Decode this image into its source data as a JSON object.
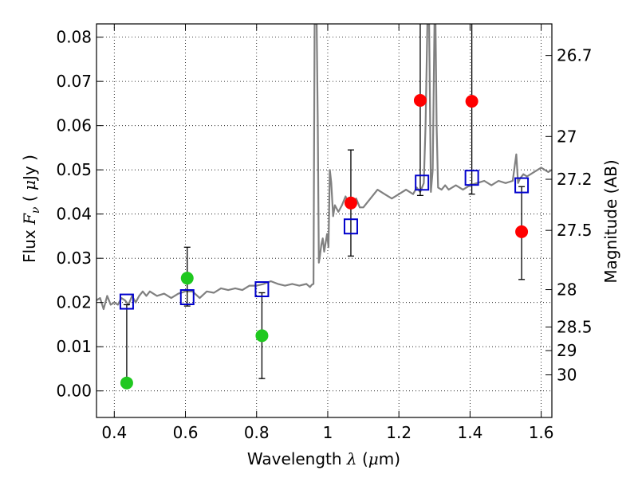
{
  "chart_data": {
    "type": "scatter",
    "xlabel": "Wavelength  λ (μm)",
    "ylabel_left": "Flux  F_ν  ( μJy )",
    "ylabel_right": "Magnitude (AB)",
    "xlim": [
      0.35,
      1.63
    ],
    "ylim": [
      -0.006,
      0.083
    ],
    "grid": true,
    "x_ticks": [
      0.4,
      0.6,
      0.8,
      1.0,
      1.2,
      1.4,
      1.6
    ],
    "x_tick_labels": [
      "0.4",
      "0.6",
      "0.8",
      "1",
      "1.2",
      "1.4",
      "1.6"
    ],
    "y_ticks": [
      0.0,
      0.01,
      0.02,
      0.03,
      0.04,
      0.05,
      0.06,
      0.07,
      0.08
    ],
    "y_tick_labels": [
      "0.00",
      "0.01",
      "0.02",
      "0.03",
      "0.04",
      "0.05",
      "0.06",
      "0.07",
      "0.08"
    ],
    "mag_ticks": [
      26.7,
      27.0,
      27.2,
      27.5,
      28.0,
      28.5,
      29.0,
      30.0
    ],
    "mag_tick_labels": [
      "26.7",
      "27",
      "27.2",
      "27.5",
      "28",
      "28.5",
      "29",
      "30"
    ],
    "series": [
      {
        "color": "#808080",
        "marker": "line",
        "x": [
          0.35,
          0.36,
          0.37,
          0.38,
          0.39,
          0.4,
          0.41,
          0.42,
          0.43,
          0.44,
          0.45,
          0.46,
          0.47,
          0.48,
          0.49,
          0.5,
          0.52,
          0.54,
          0.56,
          0.58,
          0.6,
          0.62,
          0.64,
          0.66,
          0.68,
          0.7,
          0.72,
          0.74,
          0.76,
          0.78,
          0.8,
          0.82,
          0.84,
          0.86,
          0.88,
          0.9,
          0.92,
          0.94,
          0.95,
          0.955,
          0.96,
          0.963,
          0.966,
          0.969,
          0.972,
          0.975,
          0.978,
          0.982,
          0.986,
          0.99,
          0.994,
          0.998,
          1.002,
          1.006,
          1.01,
          1.015,
          1.02,
          1.03,
          1.04,
          1.05,
          1.06,
          1.07,
          1.08,
          1.09,
          1.1,
          1.12,
          1.14,
          1.16,
          1.18,
          1.2,
          1.22,
          1.24,
          1.25,
          1.26,
          1.27,
          1.275,
          1.28,
          1.285,
          1.29,
          1.295,
          1.3,
          1.303,
          1.306,
          1.31,
          1.32,
          1.33,
          1.34,
          1.36,
          1.38,
          1.4,
          1.42,
          1.44,
          1.46,
          1.48,
          1.5,
          1.52,
          1.53,
          1.535,
          1.54,
          1.55,
          1.56,
          1.58,
          1.6,
          1.62,
          1.63
        ],
        "y": [
          0.0205,
          0.021,
          0.0185,
          0.0215,
          0.0195,
          0.02,
          0.0195,
          0.021,
          0.0205,
          0.0195,
          0.0215,
          0.02,
          0.0215,
          0.0225,
          0.0215,
          0.0225,
          0.0215,
          0.022,
          0.021,
          0.022,
          0.0225,
          0.0225,
          0.021,
          0.0225,
          0.0222,
          0.0232,
          0.0228,
          0.0232,
          0.0228,
          0.0238,
          0.0238,
          0.0242,
          0.0248,
          0.0242,
          0.0238,
          0.0242,
          0.0238,
          0.0242,
          0.0235,
          0.024,
          0.0242,
          0.083,
          0.083,
          0.083,
          0.06,
          0.029,
          0.0305,
          0.033,
          0.0345,
          0.0315,
          0.0335,
          0.0355,
          0.0325,
          0.05,
          0.047,
          0.0395,
          0.042,
          0.0405,
          0.042,
          0.044,
          0.042,
          0.0425,
          0.0435,
          0.0415,
          0.0415,
          0.0435,
          0.0455,
          0.0445,
          0.0435,
          0.0445,
          0.0455,
          0.0445,
          0.046,
          0.045,
          0.047,
          0.06,
          0.083,
          0.083,
          0.045,
          0.05,
          0.083,
          0.083,
          0.06,
          0.046,
          0.0455,
          0.0465,
          0.0455,
          0.0465,
          0.0455,
          0.0465,
          0.047,
          0.0475,
          0.0465,
          0.0475,
          0.047,
          0.0475,
          0.0535,
          0.047,
          0.048,
          0.049,
          0.0485,
          0.0495,
          0.0505,
          0.0495,
          0.05
        ]
      },
      {
        "color": "#0000cc",
        "marker": "open-square",
        "x": [
          0.435,
          0.605,
          0.815,
          1.065,
          1.265,
          1.405,
          1.545
        ],
        "y": [
          0.0202,
          0.0212,
          0.023,
          0.0372,
          0.0471,
          0.0482,
          0.0465
        ]
      },
      {
        "color": "#1fc81f",
        "marker": "filled-circle",
        "x": [
          0.435,
          0.605,
          0.815
        ],
        "y": [
          0.0018,
          0.0255,
          0.0125
        ],
        "yerr_low": [
          0.0018,
          0.0192,
          0.0028
        ],
        "yerr_high": [
          0.0195,
          0.0325,
          0.0222
        ]
      },
      {
        "color": "#ff0000",
        "marker": "filled-circle",
        "x": [
          1.065,
          1.26,
          1.405,
          1.545
        ],
        "y": [
          0.0425,
          0.0657,
          0.0655,
          0.036
        ],
        "yerr_low": [
          0.0305,
          0.0442,
          0.0445,
          0.0252
        ],
        "yerr_high": [
          0.0545,
          0.083,
          0.083,
          0.0462
        ]
      }
    ]
  }
}
